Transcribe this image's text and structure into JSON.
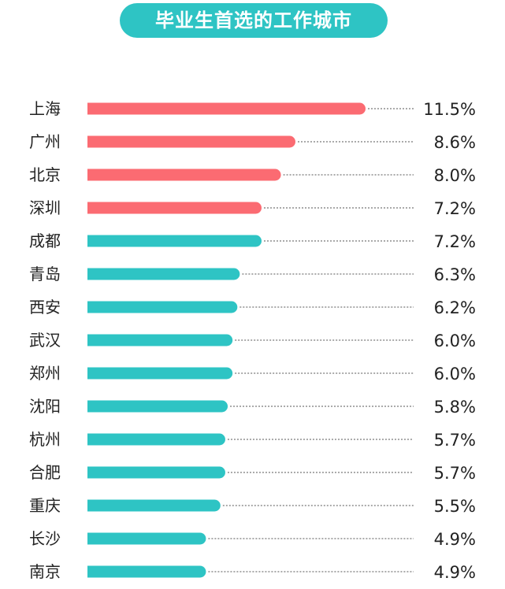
{
  "chart_data": {
    "type": "bar",
    "orientation": "horizontal",
    "title": "毕业生首选的工作城市",
    "categories": [
      "上海",
      "广州",
      "北京",
      "深圳",
      "成都",
      "青岛",
      "西安",
      "武汉",
      "郑州",
      "沈阳",
      "杭州",
      "合肥",
      "重庆",
      "长沙",
      "南京"
    ],
    "values": [
      11.5,
      8.6,
      8.0,
      7.2,
      7.2,
      6.3,
      6.2,
      6.0,
      6.0,
      5.8,
      5.7,
      5.7,
      5.5,
      4.9,
      4.9
    ],
    "value_labels": [
      "11.5%",
      "8.6%",
      "8.0%",
      "7.2%",
      "7.2%",
      "6.3%",
      "6.2%",
      "6.0%",
      "6.0%",
      "5.8%",
      "5.7%",
      "5.7%",
      "5.5%",
      "4.9%",
      "4.9%"
    ],
    "highlight_count": 4,
    "colors": {
      "highlight": "#fb6b72",
      "normal": "#2ec4c4",
      "title_bg": "#2ec4c4",
      "leader": "#555555"
    },
    "grid": false,
    "legend": "none"
  }
}
